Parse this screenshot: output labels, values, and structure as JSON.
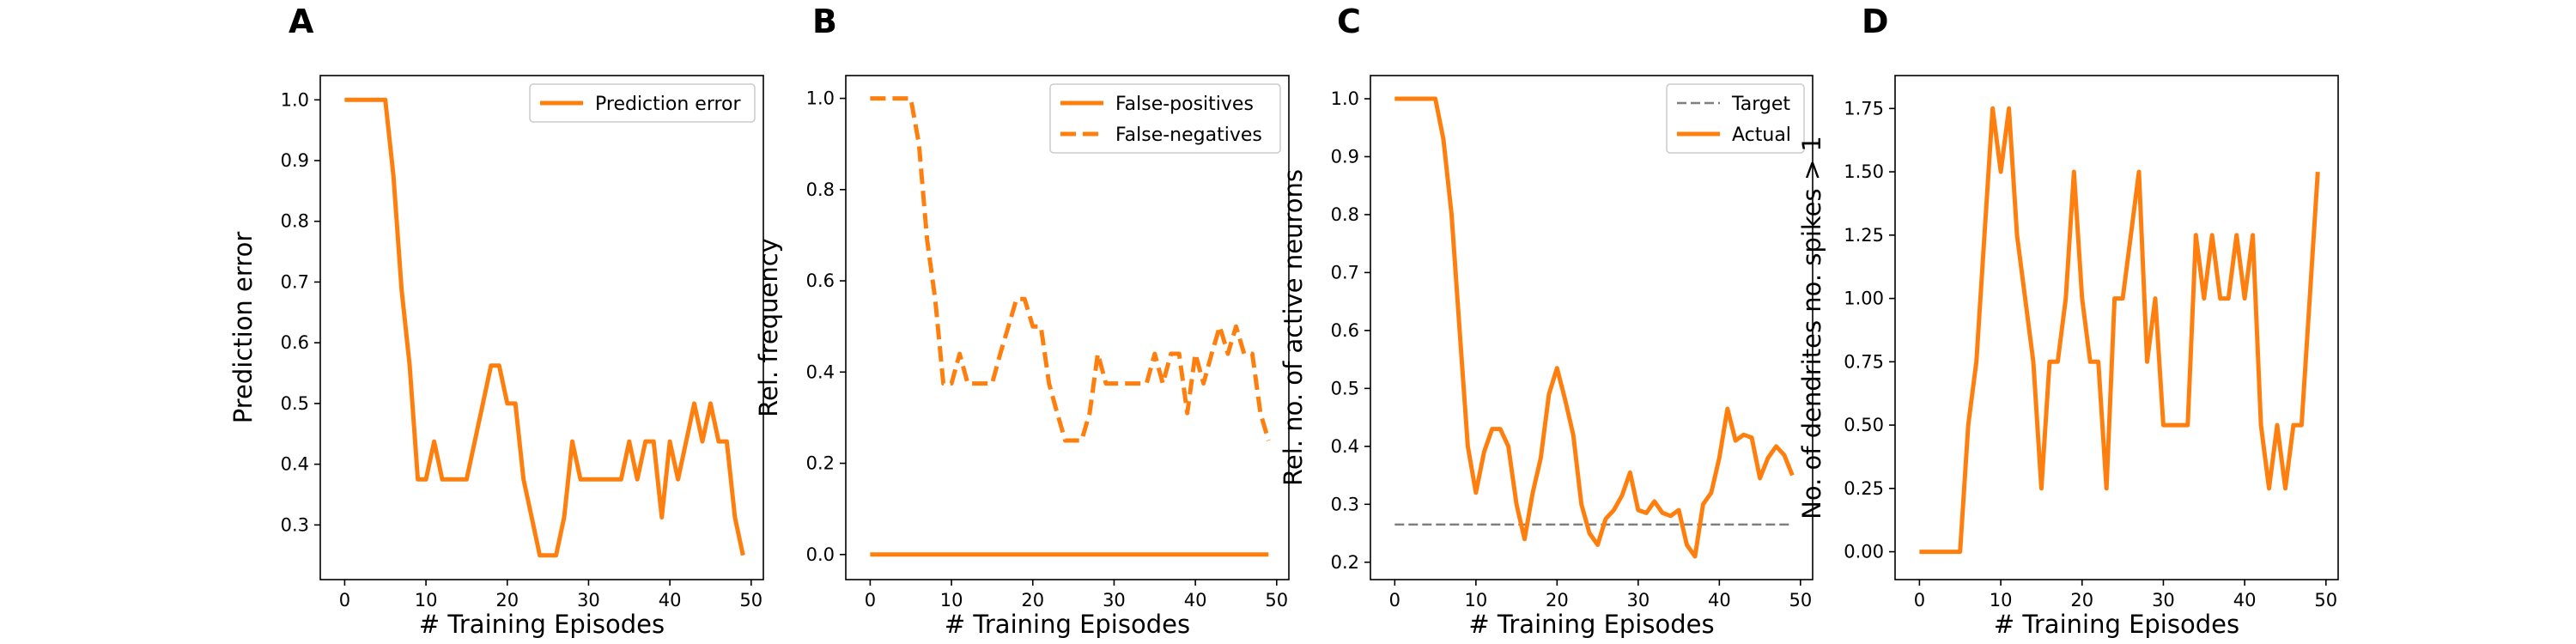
{
  "chart_data": [
    {
      "panel": "A",
      "type": "line",
      "xlabel": "# Training Episodes",
      "ylabel": "Prediction error",
      "xlim": [
        -3,
        51.5
      ],
      "ylim": [
        0.21,
        1.04
      ],
      "xticks": [
        0,
        10,
        20,
        30,
        40,
        50
      ],
      "yticks": [
        0.3,
        0.4,
        0.5,
        0.6,
        0.7,
        0.8,
        0.9,
        1.0
      ],
      "ytick_decimals": 1,
      "legend": "top-right",
      "series": [
        {
          "name": "Prediction error",
          "style": "solid",
          "color": "#ff7f0e",
          "x": [
            0,
            1,
            2,
            3,
            4,
            5,
            6,
            7,
            8,
            9,
            10,
            11,
            12,
            13,
            14,
            15,
            16,
            17,
            18,
            19,
            20,
            21,
            22,
            23,
            24,
            25,
            26,
            27,
            28,
            29,
            30,
            31,
            32,
            33,
            34,
            35,
            36,
            37,
            38,
            39,
            40,
            41,
            42,
            43,
            44,
            45,
            46,
            47,
            48,
            49
          ],
          "y": [
            1.0,
            1.0,
            1.0,
            1.0,
            1.0,
            1.0,
            0.875,
            0.6875,
            0.5625,
            0.375,
            0.375,
            0.4375,
            0.375,
            0.375,
            0.375,
            0.375,
            0.4375,
            0.5,
            0.5625,
            0.5625,
            0.5,
            0.5,
            0.375,
            0.3125,
            0.25,
            0.25,
            0.25,
            0.3125,
            0.4375,
            0.375,
            0.375,
            0.375,
            0.375,
            0.375,
            0.375,
            0.4375,
            0.375,
            0.4375,
            0.4375,
            0.3125,
            0.4375,
            0.375,
            0.4375,
            0.5,
            0.4375,
            0.5,
            0.4375,
            0.4375,
            0.3125,
            0.25
          ]
        }
      ]
    },
    {
      "panel": "B",
      "type": "line",
      "xlabel": "# Training Episodes",
      "ylabel": "Rel. frequency",
      "xlim": [
        -3,
        51.5
      ],
      "ylim": [
        -0.055,
        1.05
      ],
      "xticks": [
        0,
        10,
        20,
        30,
        40,
        50
      ],
      "yticks": [
        0.0,
        0.2,
        0.4,
        0.6,
        0.8,
        1.0
      ],
      "ytick_decimals": 1,
      "legend": "top-right",
      "series": [
        {
          "name": "False-positives",
          "style": "solid",
          "color": "#ff7f0e",
          "x": [
            0,
            1,
            2,
            3,
            4,
            5,
            6,
            7,
            8,
            9,
            10,
            11,
            12,
            13,
            14,
            15,
            16,
            17,
            18,
            19,
            20,
            21,
            22,
            23,
            24,
            25,
            26,
            27,
            28,
            29,
            30,
            31,
            32,
            33,
            34,
            35,
            36,
            37,
            38,
            39,
            40,
            41,
            42,
            43,
            44,
            45,
            46,
            47,
            48,
            49
          ],
          "y": [
            0,
            0,
            0,
            0,
            0,
            0,
            0,
            0,
            0,
            0,
            0,
            0,
            0,
            0,
            0,
            0,
            0,
            0,
            0,
            0,
            0,
            0,
            0,
            0,
            0,
            0,
            0,
            0,
            0,
            0,
            0,
            0,
            0,
            0,
            0,
            0,
            0,
            0,
            0,
            0,
            0,
            0,
            0,
            0,
            0,
            0,
            0,
            0,
            0,
            0
          ]
        },
        {
          "name": "False-negatives",
          "style": "dashed",
          "color": "#ff7f0e",
          "x": [
            0,
            1,
            2,
            3,
            4,
            5,
            6,
            7,
            8,
            9,
            10,
            11,
            12,
            13,
            14,
            15,
            16,
            17,
            18,
            19,
            20,
            21,
            22,
            23,
            24,
            25,
            26,
            27,
            28,
            29,
            30,
            31,
            32,
            33,
            34,
            35,
            36,
            37,
            38,
            39,
            40,
            41,
            42,
            43,
            44,
            45,
            46,
            47,
            48,
            49
          ],
          "y": [
            1.0,
            1.0,
            1.0,
            1.0,
            1.0,
            1.0,
            0.9,
            0.69,
            0.56,
            0.375,
            0.375,
            0.44,
            0.375,
            0.375,
            0.375,
            0.375,
            0.44,
            0.5,
            0.56,
            0.56,
            0.5,
            0.5,
            0.375,
            0.31,
            0.25,
            0.25,
            0.25,
            0.31,
            0.44,
            0.375,
            0.375,
            0.375,
            0.375,
            0.375,
            0.375,
            0.44,
            0.375,
            0.44,
            0.44,
            0.31,
            0.44,
            0.375,
            0.44,
            0.5,
            0.44,
            0.5,
            0.44,
            0.44,
            0.31,
            0.25
          ]
        }
      ]
    },
    {
      "panel": "C",
      "type": "line",
      "xlabel": "# Training Episodes",
      "ylabel": "Rel. no. of active neurons",
      "xlim": [
        -3,
        51.5
      ],
      "ylim": [
        0.17,
        1.04
      ],
      "xticks": [
        0,
        10,
        20,
        30,
        40,
        50
      ],
      "yticks": [
        0.2,
        0.3,
        0.4,
        0.5,
        0.6,
        0.7,
        0.8,
        0.9,
        1.0
      ],
      "ytick_decimals": 1,
      "legend": "top-right",
      "series": [
        {
          "name": "Target",
          "style": "dashed-thin",
          "color": "#7f7f7f",
          "x": [
            0,
            49
          ],
          "y": [
            0.265,
            0.265
          ]
        },
        {
          "name": "Actual",
          "style": "solid",
          "color": "#ff7f0e",
          "x": [
            0,
            1,
            2,
            3,
            4,
            5,
            6,
            7,
            8,
            9,
            10,
            11,
            12,
            13,
            14,
            15,
            16,
            17,
            18,
            19,
            20,
            21,
            22,
            23,
            24,
            25,
            26,
            27,
            28,
            29,
            30,
            31,
            32,
            33,
            34,
            35,
            36,
            37,
            38,
            39,
            40,
            41,
            42,
            43,
            44,
            45,
            46,
            47,
            48,
            49
          ],
          "y": [
            1.0,
            1.0,
            1.0,
            1.0,
            1.0,
            1.0,
            0.93,
            0.8,
            0.6,
            0.4,
            0.32,
            0.39,
            0.43,
            0.43,
            0.4,
            0.3,
            0.24,
            0.32,
            0.38,
            0.49,
            0.535,
            0.48,
            0.42,
            0.3,
            0.25,
            0.23,
            0.275,
            0.29,
            0.315,
            0.355,
            0.29,
            0.285,
            0.305,
            0.285,
            0.28,
            0.29,
            0.23,
            0.21,
            0.3,
            0.32,
            0.38,
            0.465,
            0.41,
            0.42,
            0.415,
            0.345,
            0.38,
            0.4,
            0.385,
            0.35
          ]
        }
      ]
    },
    {
      "panel": "D",
      "type": "line",
      "xlabel": "# Training Episodes",
      "ylabel": "No. of dendrites no. spikes > 1",
      "xlim": [
        -3,
        51.5
      ],
      "ylim": [
        -0.11,
        1.88
      ],
      "xticks": [
        0,
        10,
        20,
        30,
        40,
        50
      ],
      "yticks": [
        0.0,
        0.25,
        0.5,
        0.75,
        1.0,
        1.25,
        1.5,
        1.75
      ],
      "ytick_decimals": 2,
      "legend": "none",
      "series": [
        {
          "name": "",
          "style": "solid",
          "color": "#ff7f0e",
          "x": [
            0,
            1,
            2,
            3,
            4,
            5,
            6,
            7,
            8,
            9,
            10,
            11,
            12,
            13,
            14,
            15,
            16,
            17,
            18,
            19,
            20,
            21,
            22,
            23,
            24,
            25,
            26,
            27,
            28,
            29,
            30,
            31,
            32,
            33,
            34,
            35,
            36,
            37,
            38,
            39,
            40,
            41,
            42,
            43,
            44,
            45,
            46,
            47,
            48,
            49
          ],
          "y": [
            0,
            0,
            0,
            0,
            0,
            0,
            0.5,
            0.75,
            1.25,
            1.75,
            1.5,
            1.75,
            1.25,
            1.0,
            0.75,
            0.25,
            0.75,
            0.75,
            1.0,
            1.5,
            1.0,
            0.75,
            0.75,
            0.25,
            1.0,
            1.0,
            1.25,
            1.5,
            0.75,
            1.0,
            0.5,
            0.5,
            0.5,
            0.5,
            1.25,
            1.0,
            1.25,
            1.0,
            1.0,
            1.25,
            1.0,
            1.25,
            0.5,
            0.25,
            0.5,
            0.25,
            0.5,
            0.5,
            1.0,
            1.5
          ]
        }
      ]
    }
  ]
}
